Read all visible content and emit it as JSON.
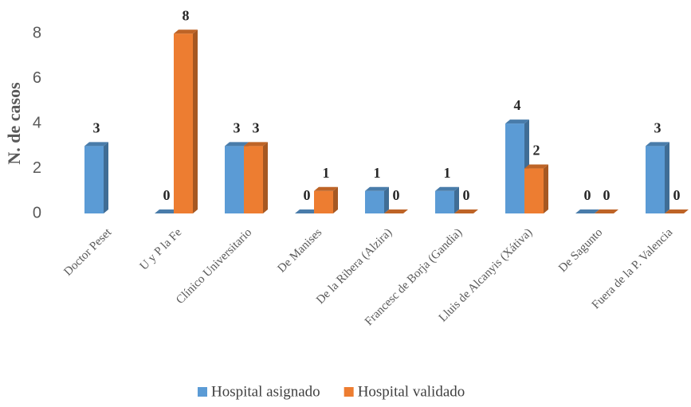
{
  "chart_data": {
    "type": "bar",
    "y_label": "N. de casos",
    "categories": [
      "Doctor Peset",
      "U y P la Fe",
      "Clínico Universitario",
      "De Manises",
      "De la Ribera (Alzira)",
      "Francesc de Borja (Gandia)",
      "Lluis de Alcanyis (Xátiva)",
      "De Sagunto",
      "Fuera de la P. Valencia"
    ],
    "series": [
      {
        "name": "Hospital asignado",
        "color": "#5b9bd5",
        "values": [
          3,
          0,
          3,
          0,
          1,
          1,
          4,
          0,
          3
        ]
      },
      {
        "name": "Hospital validado",
        "color": "#ed7d31",
        "values": [
          null,
          8,
          3,
          1,
          0,
          0,
          2,
          0,
          0
        ]
      }
    ],
    "ylim": [
      0,
      9
    ],
    "yticks": [
      0,
      2,
      4,
      6,
      8
    ],
    "legend": "bottom",
    "data_labels": true
  }
}
